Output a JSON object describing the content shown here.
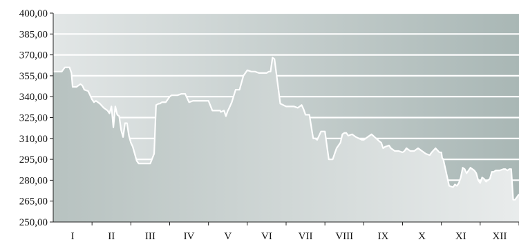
{
  "chart_data": {
    "type": "area",
    "title": "",
    "xlabel": "",
    "ylabel": "",
    "ylim": [
      250,
      400
    ],
    "y_ticks": [
      "250,00",
      "265,00",
      "280,00",
      "295,00",
      "310,00",
      "325,00",
      "340,00",
      "355,00",
      "370,00",
      "385,00",
      "400,00"
    ],
    "y_tick_values": [
      250,
      265,
      280,
      295,
      310,
      325,
      340,
      355,
      370,
      385,
      400
    ],
    "x_tick_labels": [
      "I",
      "II",
      "III",
      "IV",
      "V",
      "VI",
      "VII",
      "VIII",
      "IX",
      "X",
      "XI",
      "XII"
    ],
    "x_range": [
      0,
      12
    ],
    "grid": true,
    "colors": {
      "line": "#ffffff",
      "grid": "#ffffff",
      "bg_light": "#e2e6e6",
      "bg_dark": "#a9b7b5",
      "area_dark": "#b7c2c0",
      "area_light": "#e9ecec"
    },
    "series": [
      {
        "x": [
          0,
          0.22,
          0.3,
          0.42,
          0.47,
          0.5,
          0.6,
          0.65,
          0.7,
          0.75,
          0.8,
          0.9,
          1.0,
          1.05,
          1.1,
          1.2,
          1.3,
          1.4,
          1.45,
          1.5,
          1.55,
          1.6,
          1.65,
          1.7,
          1.75,
          1.8,
          1.85,
          1.9,
          1.95,
          2.0,
          2.05,
          2.15,
          2.2,
          2.28,
          2.35,
          2.5,
          2.6,
          2.65,
          2.72,
          2.75,
          2.8,
          2.9,
          3.0,
          3.05,
          3.2,
          3.3,
          3.4,
          3.5,
          3.6,
          3.7,
          4.0,
          4.1,
          4.3,
          4.32,
          4.4,
          4.45,
          4.5,
          4.52,
          4.6,
          4.7,
          4.8,
          4.9,
          5.0,
          5.1,
          5.2,
          5.3,
          5.4,
          5.5,
          5.55,
          5.6,
          5.65,
          5.7,
          5.85,
          6.0,
          6.05,
          6.1,
          6.15,
          6.2,
          6.3,
          6.35,
          6.4,
          6.45,
          6.5,
          6.6,
          6.68,
          6.7,
          6.75,
          6.8,
          6.9,
          6.95,
          7.0,
          7.1,
          7.2,
          7.3,
          7.4,
          7.45,
          7.5,
          7.55,
          7.6,
          7.7,
          7.8,
          7.95,
          8.0,
          8.2,
          8.4,
          8.45,
          8.5,
          8.55,
          8.65,
          8.7,
          8.75,
          8.8,
          8.9,
          9.0,
          9.05,
          9.1,
          9.2,
          9.3,
          9.4,
          9.5,
          9.6,
          9.7,
          9.75,
          9.85,
          9.95,
          10.0,
          10.02,
          10.05,
          10.2,
          10.3,
          10.35,
          10.4,
          10.45,
          10.5,
          10.55,
          10.6,
          10.65,
          10.7,
          10.75,
          10.8,
          10.85,
          10.9,
          10.95,
          11.0,
          11.05,
          11.1,
          11.15,
          11.2,
          11.25,
          11.3,
          11.35,
          11.4,
          11.5,
          11.6,
          11.65,
          11.7,
          11.75,
          11.8,
          11.85,
          11.9,
          11.95,
          12.0
        ],
        "y": [
          358,
          358,
          361,
          361,
          357,
          347,
          347,
          348,
          349,
          348,
          345,
          344,
          338,
          336,
          337,
          335,
          332,
          330,
          328,
          333,
          318,
          333,
          327,
          326,
          316,
          311,
          321,
          321,
          312,
          307,
          304,
          294,
          292,
          292,
          292,
          292,
          299,
          334,
          335,
          335,
          336,
          336,
          340,
          341,
          341,
          342,
          342,
          336,
          337,
          337,
          337,
          330,
          330,
          329,
          330,
          326,
          330,
          331,
          336,
          345,
          345,
          355,
          359,
          358,
          358,
          357,
          357,
          357,
          358,
          358,
          368,
          367,
          335,
          333,
          333,
          333,
          333,
          333,
          332,
          333,
          334,
          331,
          327,
          327,
          313,
          310,
          310,
          309,
          315,
          315,
          315,
          295,
          295,
          303,
          307,
          313,
          314,
          314,
          312,
          313,
          311,
          309,
          309,
          313,
          308,
          307,
          303,
          304,
          305,
          303,
          302,
          301,
          301,
          300,
          301,
          303,
          301,
          301,
          303,
          301,
          299,
          298,
          300,
          303,
          300,
          300,
          296,
          295,
          276,
          275,
          277,
          276,
          278,
          282,
          289,
          288,
          285,
          287,
          289,
          288,
          287,
          285,
          280,
          278,
          282,
          281,
          279,
          280,
          281,
          286,
          286,
          287,
          287,
          288,
          288,
          287,
          288,
          288,
          266,
          266,
          268,
          270
        ]
      }
    ]
  }
}
